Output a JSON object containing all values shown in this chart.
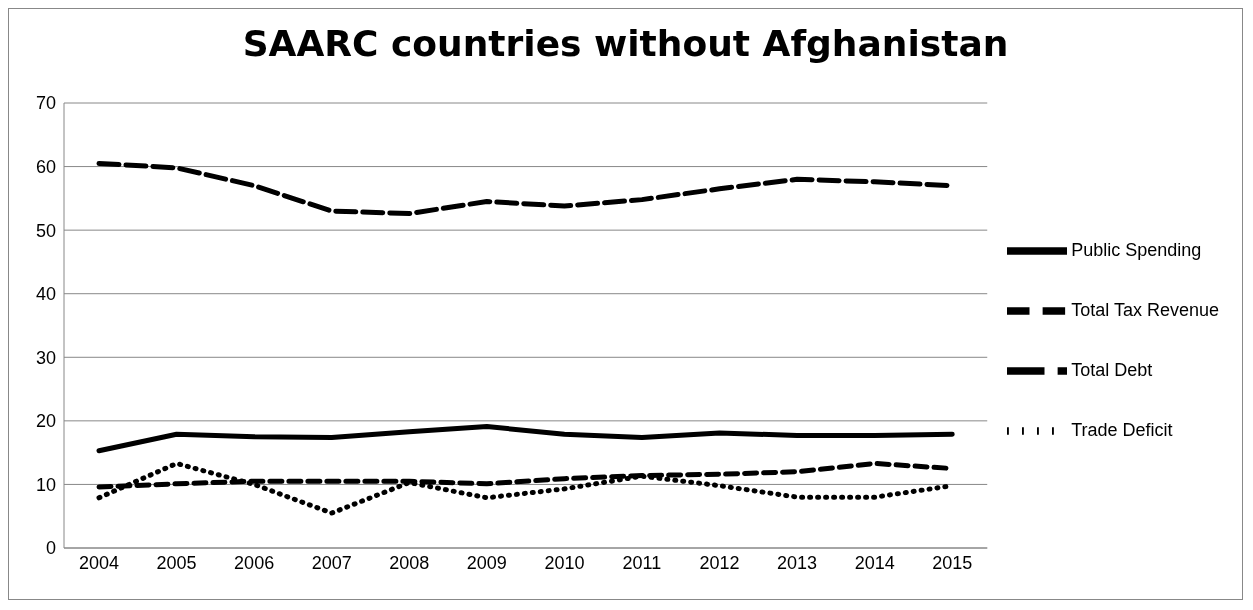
{
  "chart_data": {
    "type": "line",
    "title": "SAARC countries without Afghanistan",
    "categories": [
      "2004",
      "2005",
      "2006",
      "2007",
      "2008",
      "2009",
      "2010",
      "2011",
      "2012",
      "2013",
      "2014",
      "2015"
    ],
    "series": [
      {
        "name": "Public Spending",
        "color": "#000000",
        "line_style": "solid",
        "values": [
          15.3,
          17.9,
          17.5,
          17.4,
          18.3,
          19.1,
          17.9,
          17.4,
          18.1,
          17.7,
          17.7,
          17.9
        ]
      },
      {
        "name": "Total Tax Revenue",
        "color": "#000000",
        "line_style": "dashed",
        "values": [
          9.6,
          10.1,
          10.5,
          10.5,
          10.5,
          10.1,
          10.9,
          11.4,
          11.6,
          12.0,
          13.3,
          12.5
        ]
      },
      {
        "name": "Total Debt",
        "color": "#000000",
        "line_style": "dashed",
        "values": [
          60.5,
          59.8,
          57,
          53,
          52.6,
          54.5,
          53.8,
          54.8,
          56.5,
          58,
          57.6,
          57
        ]
      },
      {
        "name": "Trade Deficit",
        "color": "#000000",
        "line_style": "dotted",
        "values": [
          7.9,
          13.3,
          10.0,
          5.5,
          10.3,
          7.9,
          9.3,
          11.3,
          9.8,
          8.0,
          8.0,
          9.8
        ]
      }
    ],
    "ylim": [
      0,
      70
    ],
    "yticks": [
      0,
      10,
      20,
      30,
      40,
      50,
      60,
      70
    ],
    "grid": "y",
    "legend": "right",
    "marker": "none"
  }
}
